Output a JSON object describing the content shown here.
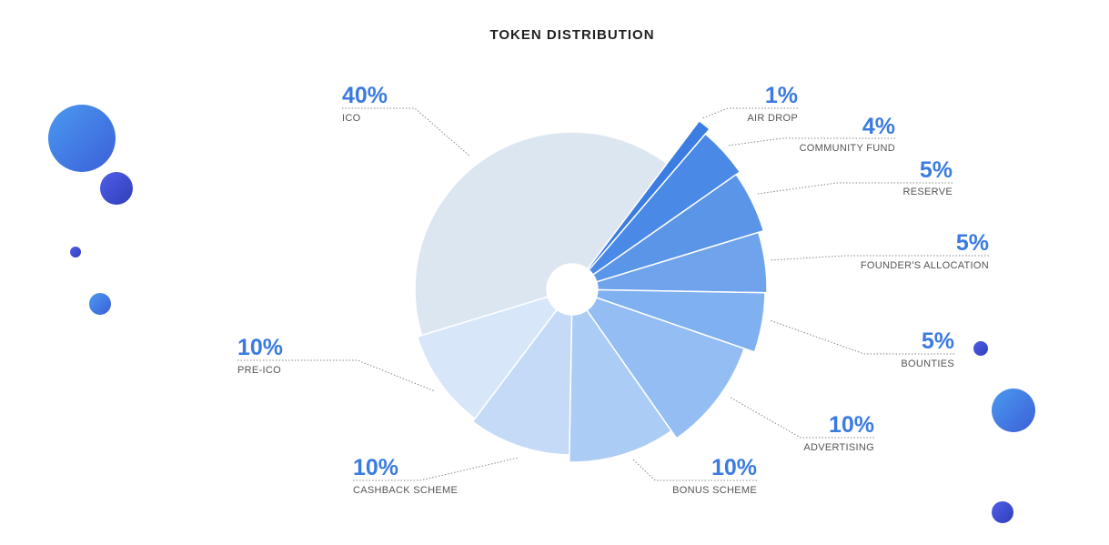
{
  "chart_data": {
    "type": "pie",
    "title": "TOKEN DISTRIBUTION",
    "categories": [
      "ICO",
      "AIR DROP",
      "COMMUNITY FUND",
      "RESERVE",
      "FOUNDER'S ALLOCATION",
      "BOUNTIES",
      "ADVERTISING",
      "BONUS SCHEME",
      "CASHBACK SCHEME",
      "PRE-ICO"
    ],
    "values": [
      40,
      1,
      4,
      5,
      5,
      5,
      10,
      10,
      10,
      10
    ],
    "value_labels": [
      "40%",
      "1%",
      "4%",
      "5%",
      "5%",
      "5%",
      "10%",
      "10%",
      "10%",
      "10%"
    ],
    "colors": [
      "#dce6f0",
      "#3b7de0",
      "#4a8ae6",
      "#5b95e8",
      "#6fa3ec",
      "#7fb0f0",
      "#93bdf3",
      "#abccf5",
      "#c4daf6",
      "#d7e7f9"
    ]
  }
}
